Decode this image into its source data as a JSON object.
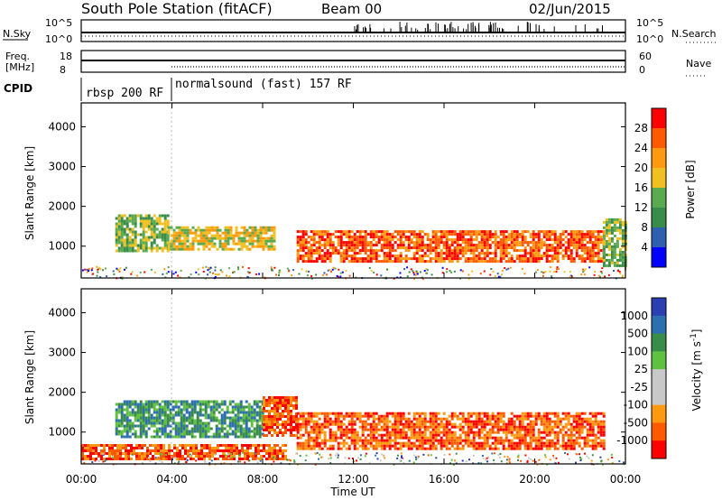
{
  "header": {
    "station": "South Pole Station (fitACF)",
    "beam": "Beam 00",
    "date": "02/Jun/2015"
  },
  "strips": {
    "nsky_label": "N.Sky",
    "nsky_ticks": [
      "10^5",
      "10^0"
    ],
    "nsearch_label": "N.Search",
    "nsearch_ticks": [
      "10^5",
      "10^0"
    ],
    "freq_label": "Freq.",
    "freq_unit": "[MHz]",
    "freq_ticks": [
      "18",
      "8"
    ],
    "nave_label": "Nave",
    "nave_ticks": [
      "60",
      "0"
    ],
    "cpid_label": "CPID",
    "cpid_segments": [
      {
        "text": "rbsp 200 RF",
        "start_hour": 0
      },
      {
        "text": "normalsound (fast) 157 RF",
        "start_hour": 4
      }
    ]
  },
  "time_axis": {
    "title": "Time UT",
    "ticks": [
      "00:00",
      "04:00",
      "08:00",
      "12:00",
      "16:00",
      "20:00",
      "00:00"
    ],
    "range_hours": [
      0,
      24
    ]
  },
  "colors": {
    "power": [
      "#0000ff",
      "#2e5fb0",
      "#3a8c4a",
      "#5aaa50",
      "#f0c020",
      "#ff9a10",
      "#ff5a00",
      "#ff0000"
    ],
    "velocity_scale": [
      "#ff0000",
      "#ff5a00",
      "#ff9a10",
      "#c8c8c8",
      "#c8c8c8",
      "#60c040",
      "#3a8c4a",
      "#2e6fb0",
      "#2a3fb0"
    ]
  },
  "chart_data": [
    {
      "type": "heatmap",
      "ylabel": "Slant Range [km]",
      "xlabel": "",
      "xlim_hours": [
        0,
        24
      ],
      "ylim": [
        200,
        4600
      ],
      "yticks": [
        "4000",
        "3000",
        "2000",
        "1000"
      ],
      "colorbar": {
        "label": "Power [dB]",
        "ticks": [
          "28",
          "24",
          "20",
          "16",
          "12",
          "8",
          "4"
        ],
        "range": [
          0,
          32
        ]
      },
      "echo_regions": [
        {
          "hours": [
            1.5,
            3.8
          ],
          "range_km": [
            900,
            1800
          ],
          "power_db": 14
        },
        {
          "hours": [
            3.8,
            8.5
          ],
          "range_km": [
            900,
            1500
          ],
          "power_db": 18
        },
        {
          "hours": [
            9.5,
            23.0
          ],
          "range_km": [
            600,
            1400
          ],
          "power_db": 26
        },
        {
          "hours": [
            23.0,
            24.0
          ],
          "range_km": [
            500,
            1700
          ],
          "power_db": 12
        }
      ]
    },
    {
      "type": "heatmap",
      "ylabel": "Slant Range [km]",
      "xlabel": "Time UT",
      "xlim_hours": [
        0,
        24
      ],
      "ylim": [
        200,
        4600
      ],
      "yticks": [
        "4000",
        "3000",
        "2000",
        "1000"
      ],
      "colorbar": {
        "label": "Velocity [m s^-1]",
        "ticks": [
          "1000",
          "500",
          "100",
          "25",
          "-25",
          "-100",
          "-500",
          "-1000"
        ],
        "range": [
          -1200,
          1200
        ]
      },
      "echo_regions": [
        {
          "hours": [
            1.5,
            8.0
          ],
          "range_km": [
            900,
            1800
          ],
          "velocity": 150
        },
        {
          "hours": [
            8.0,
            9.5
          ],
          "range_km": [
            900,
            1900
          ],
          "velocity": -200
        },
        {
          "hours": [
            9.5,
            23.0
          ],
          "range_km": [
            600,
            1500
          ],
          "velocity": -150
        },
        {
          "hours": [
            0,
            9.0
          ],
          "range_km": [
            300,
            700
          ],
          "velocity": -300
        }
      ]
    }
  ]
}
